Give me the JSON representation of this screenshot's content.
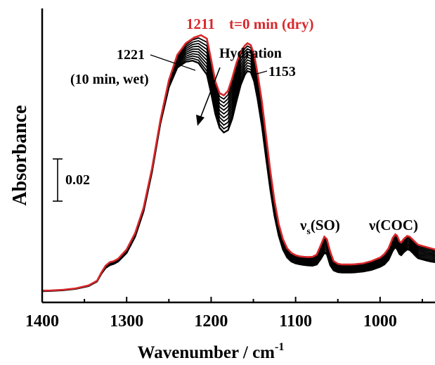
{
  "chart_data": {
    "type": "line",
    "xlabel": "Wavenumber / cm",
    "xlabel_sup": "-1",
    "ylabel": "Absorbance",
    "xlim": [
      1400,
      935
    ],
    "x_reversed": true,
    "x_ticks": [
      1400,
      1300,
      1200,
      1100,
      1000
    ],
    "y_ticks_shown": false,
    "grid": false,
    "scale_bar_label": "0.02",
    "annotations": {
      "peak_1211": "1211",
      "dry_label": "t=0 min (dry)",
      "peak_1221": "1221",
      "wet_label": "(10 min, wet)",
      "hydration": "Hydration",
      "peak_1153": "1153",
      "nu_s": "ν",
      "nu_s_sub": "s",
      "nu_s_rest": "(SO)",
      "nu_coc": "ν(COC)"
    },
    "colors": {
      "dry": "#d8282b",
      "wet": "#000000",
      "text_red": "#d8282b"
    },
    "series": [
      {
        "x": [
          1400,
          1390,
          1375,
          1360,
          1345,
          1335,
          1330,
          1325,
          1320,
          1315,
          1310,
          1300,
          1290,
          1280,
          1270,
          1260,
          1250,
          1240,
          1230,
          1220,
          1212,
          1205,
          1200,
          1195,
          1190,
          1185,
          1180,
          1175,
          1170,
          1165,
          1160,
          1157,
          1153,
          1149,
          1145,
          1140,
          1135,
          1130,
          1125,
          1120,
          1115,
          1110,
          1105,
          1100,
          1095,
          1090,
          1085,
          1080,
          1075,
          1070,
          1066,
          1063,
          1059,
          1055,
          1050,
          1045,
          1040,
          1035,
          1030,
          1020,
          1010,
          1000,
          995,
          990,
          985,
          982,
          980,
          977,
          975,
          972,
          968,
          965,
          962,
          958,
          955,
          950,
          945,
          940,
          935
        ],
        "y": [
          0.0002,
          0.0003,
          0.0006,
          0.0012,
          0.0025,
          0.0045,
          0.008,
          0.011,
          0.0125,
          0.013,
          0.014,
          0.018,
          0.025,
          0.036,
          0.053,
          0.074,
          0.091,
          0.102,
          0.107,
          0.1095,
          0.1105,
          0.109,
          0.1,
          0.0905,
          0.0855,
          0.0845,
          0.0865,
          0.092,
          0.0985,
          0.1035,
          0.106,
          0.107,
          0.1062,
          0.102,
          0.094,
          0.082,
          0.067,
          0.052,
          0.039,
          0.029,
          0.0225,
          0.0185,
          0.0165,
          0.0155,
          0.015,
          0.0148,
          0.0147,
          0.0148,
          0.0158,
          0.02,
          0.0235,
          0.0225,
          0.017,
          0.013,
          0.0118,
          0.0115,
          0.0115,
          0.0115,
          0.0116,
          0.012,
          0.013,
          0.0145,
          0.016,
          0.0185,
          0.023,
          0.0245,
          0.024,
          0.0215,
          0.021,
          0.0225,
          0.0238,
          0.0235,
          0.0225,
          0.021,
          0.02,
          0.0195,
          0.019,
          0.0185,
          0.018
        ]
      },
      {
        "x": [
          1400,
          1390,
          1375,
          1360,
          1345,
          1335,
          1330,
          1325,
          1320,
          1315,
          1310,
          1300,
          1290,
          1280,
          1270,
          1260,
          1250,
          1240,
          1230,
          1222,
          1215,
          1205,
          1200,
          1195,
          1190,
          1185,
          1180,
          1175,
          1170,
          1165,
          1160,
          1157,
          1153,
          1149,
          1145,
          1140,
          1135,
          1130,
          1125,
          1120,
          1115,
          1110,
          1105,
          1100,
          1095,
          1090,
          1085,
          1080,
          1075,
          1070,
          1066,
          1063,
          1059,
          1055,
          1050,
          1045,
          1040,
          1035,
          1030,
          1020,
          1010,
          1000,
          995,
          990,
          985,
          982,
          980,
          977,
          975,
          972,
          968,
          965,
          962,
          958,
          955,
          950,
          945,
          940,
          935
        ],
        "y": [
          0.0,
          0.0001,
          0.0004,
          0.001,
          0.0022,
          0.0042,
          0.0075,
          0.01,
          0.0112,
          0.0118,
          0.0128,
          0.0165,
          0.0235,
          0.0345,
          0.0515,
          0.0725,
          0.088,
          0.0965,
          0.099,
          0.0995,
          0.0985,
          0.0935,
          0.0855,
          0.0765,
          0.0705,
          0.0685,
          0.0695,
          0.0745,
          0.082,
          0.089,
          0.0935,
          0.095,
          0.0945,
          0.0905,
          0.083,
          0.0715,
          0.0575,
          0.044,
          0.0325,
          0.024,
          0.018,
          0.0145,
          0.0128,
          0.012,
          0.0116,
          0.0113,
          0.0111,
          0.011,
          0.0115,
          0.014,
          0.0165,
          0.016,
          0.0112,
          0.009,
          0.0082,
          0.008,
          0.008,
          0.008,
          0.0081,
          0.0085,
          0.0092,
          0.0105,
          0.0115,
          0.0135,
          0.0175,
          0.019,
          0.0182,
          0.016,
          0.0155,
          0.0168,
          0.018,
          0.0178,
          0.0168,
          0.0152,
          0.0142,
          0.0137,
          0.0132,
          0.0128,
          0.0125
        ]
      }
    ]
  }
}
